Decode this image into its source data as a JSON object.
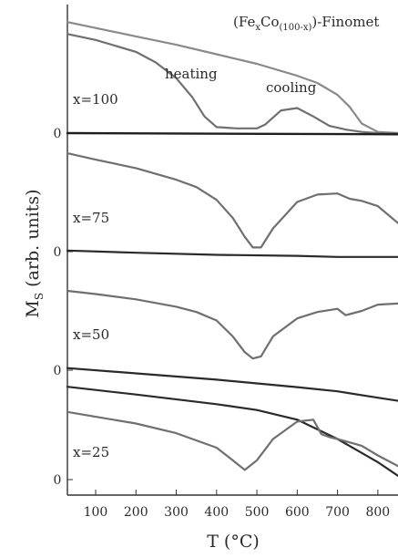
{
  "chart_data": {
    "type": "line",
    "title": "(FeₓCo₁₀₀₋ₓ)-Finomet",
    "title_parts": {
      "lead": "(Fe",
      "sub1": "x",
      "mid": "Co",
      "sub2": "(100-x)",
      "tail": ")-Finomet"
    },
    "xlabel": "T (°C)",
    "ylabel": "Mₛ (arb. units)",
    "ylabel_parts": {
      "main": "M",
      "sub": "S",
      "rest": " (arb. units)"
    },
    "xlim": [
      30,
      850
    ],
    "xticks": [
      100,
      200,
      300,
      400,
      500,
      600,
      700,
      800
    ],
    "legend_annotations": {
      "heating": "heating",
      "cooling": "cooling"
    },
    "panels": [
      {
        "label": "x=100",
        "zero_label": "0",
        "series": [
          {
            "name": "cooling",
            "color": "#8a8a8a",
            "x": [
              30,
              100,
              200,
              300,
              400,
              500,
              600,
              650,
              700,
              730,
              760,
              800,
              850
            ],
            "y": [
              0.93,
              0.88,
              0.81,
              0.74,
              0.66,
              0.58,
              0.48,
              0.42,
              0.32,
              0.22,
              0.08,
              0.01,
              0.0
            ]
          },
          {
            "name": "heating",
            "color": "#6f6f6f",
            "x": [
              30,
              100,
              200,
              250,
              300,
              340,
              370,
              400,
              450,
              500,
              520,
              560,
              600,
              640,
              680,
              720,
              760,
              800,
              850
            ],
            "y": [
              0.83,
              0.78,
              0.68,
              0.59,
              0.46,
              0.3,
              0.14,
              0.05,
              0.04,
              0.04,
              0.07,
              0.19,
              0.21,
              0.14,
              0.06,
              0.03,
              0.01,
              0.0,
              0.0
            ]
          },
          {
            "name": "baseline",
            "color": "#1e1e1e",
            "x": [
              30,
              850
            ],
            "y": [
              0.0,
              -0.01
            ]
          }
        ]
      },
      {
        "label": "x=75",
        "zero_label": "0",
        "series": [
          {
            "name": "cooling",
            "color": "#2a2a2a",
            "x": [
              30,
              200,
              400,
              600,
              700,
              800,
              850
            ],
            "y": [
              0.01,
              -0.01,
              -0.03,
              -0.04,
              -0.05,
              -0.05,
              -0.05
            ]
          },
          {
            "name": "heating",
            "color": "#6f6f6f",
            "x": [
              30,
              100,
              200,
              300,
              350,
              400,
              440,
              470,
              490,
              510,
              540,
              600,
              650,
              700,
              730,
              760,
              800,
              850
            ],
            "y": [
              0.93,
              0.87,
              0.79,
              0.68,
              0.61,
              0.49,
              0.32,
              0.14,
              0.04,
              0.04,
              0.22,
              0.47,
              0.54,
              0.55,
              0.5,
              0.48,
              0.43,
              0.27
            ]
          }
        ]
      },
      {
        "label": "x=50",
        "zero_label": "0",
        "series": [
          {
            "name": "cooling",
            "color": "#2a2a2a",
            "x": [
              30,
              200,
              400,
              600,
              700,
              800,
              850
            ],
            "y": [
              0.02,
              -0.03,
              -0.09,
              -0.16,
              -0.2,
              -0.26,
              -0.29
            ]
          },
          {
            "name": "heating",
            "color": "#6f6f6f",
            "x": [
              30,
              100,
              200,
              300,
              350,
              400,
              440,
              470,
              490,
              510,
              540,
              600,
              650,
              700,
              720,
              760,
              800,
              850
            ],
            "y": [
              0.75,
              0.72,
              0.67,
              0.6,
              0.55,
              0.47,
              0.32,
              0.17,
              0.11,
              0.13,
              0.32,
              0.49,
              0.55,
              0.58,
              0.52,
              0.56,
              0.62,
              0.63
            ]
          }
        ]
      },
      {
        "label": "x=25",
        "zero_label": "0",
        "series": [
          {
            "name": "cooling",
            "color": "#2a2a2a",
            "x": [
              30,
              200,
              400,
              500,
              600,
              700,
              750,
              800,
              850
            ],
            "y": [
              0.96,
              0.88,
              0.78,
              0.72,
              0.62,
              0.42,
              0.3,
              0.18,
              0.04
            ]
          },
          {
            "name": "heating",
            "color": "#6f6f6f",
            "x": [
              30,
              100,
              200,
              300,
              400,
              440,
              470,
              500,
              540,
              600,
              640,
              660,
              680,
              700,
              760,
              800,
              850
            ],
            "y": [
              0.7,
              0.65,
              0.58,
              0.48,
              0.33,
              0.2,
              0.1,
              0.2,
              0.42,
              0.6,
              0.62,
              0.47,
              0.44,
              0.42,
              0.35,
              0.25,
              0.14
            ]
          }
        ]
      }
    ]
  }
}
